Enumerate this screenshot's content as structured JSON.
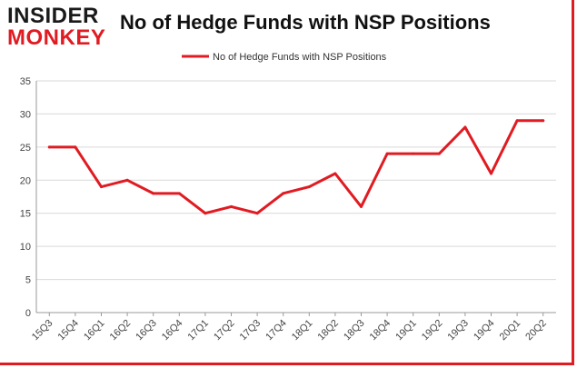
{
  "logo": {
    "top": "INSIDER",
    "bottom": "MONKEY"
  },
  "colors": {
    "accent": "#e01b22",
    "grid": "#d9d9d9",
    "axis": "#999999"
  },
  "chart_data": {
    "type": "line",
    "title": "No of Hedge Funds with NSP Positions",
    "categories": [
      "15Q3",
      "15Q4",
      "16Q1",
      "16Q2",
      "16Q3",
      "16Q4",
      "17Q1",
      "17Q2",
      "17Q3",
      "17Q4",
      "18Q1",
      "18Q2",
      "18Q3",
      "18Q4",
      "19Q1",
      "19Q2",
      "19Q3",
      "19Q4",
      "20Q1",
      "20Q2"
    ],
    "series": [
      {
        "name": "No of Hedge Funds with NSP Positions",
        "values": [
          25,
          25,
          19,
          20,
          18,
          18,
          15,
          16,
          15,
          18,
          19,
          21,
          16,
          24,
          24,
          24,
          28,
          21,
          29,
          29
        ],
        "color": "#e01b22"
      }
    ],
    "ylim": [
      0,
      35
    ],
    "yticks": [
      0,
      5,
      10,
      15,
      20,
      25,
      30,
      35
    ],
    "grid": true,
    "legend": "top-center"
  }
}
